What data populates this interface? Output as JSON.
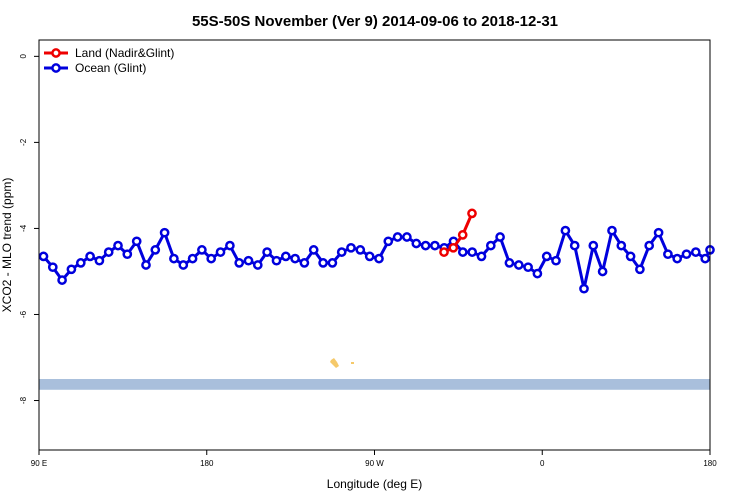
{
  "chart_data": {
    "type": "line",
    "title": "55S-50S November (Ver 9)   2014-09-06 to 2018-12-31",
    "xlabel": "Longitude (deg E)",
    "ylabel": "XCO2 - MLO trend (ppm)",
    "xlim": [
      90,
      450
    ],
    "ylim": [
      -9.15,
      0.38
    ],
    "x_ticks": [
      {
        "value": 90,
        "label": "90 E"
      },
      {
        "value": 180,
        "label": "180"
      },
      {
        "value": 270,
        "label": "90 W"
      },
      {
        "value": 360,
        "label": "0"
      },
      {
        "value": 450,
        "label": "180"
      }
    ],
    "y_ticks": [
      {
        "value": 0,
        "label": "0"
      },
      {
        "value": -2,
        "label": "-2"
      },
      {
        "value": -4,
        "label": "-4"
      },
      {
        "value": -6,
        "label": "-6"
      },
      {
        "value": -8,
        "label": "-8"
      }
    ],
    "grid": false,
    "legend_position": "top-left",
    "series": [
      {
        "name": "Land (Nadir&Glint)",
        "color": "#ee0000",
        "x": [
          307.3,
          312.3,
          317.3,
          322.3
        ],
        "y": [
          -4.55,
          -4.45,
          -4.15,
          -3.65
        ]
      },
      {
        "name": "Ocean (Glint)",
        "color": "#0000dd",
        "x": [
          92.4,
          97.4,
          102.4,
          107.4,
          112.4,
          117.4,
          122.4,
          127.4,
          132.4,
          137.4,
          142.4,
          147.4,
          152.4,
          157.4,
          162.4,
          167.4,
          172.4,
          177.4,
          182.4,
          187.4,
          192.4,
          197.4,
          202.4,
          207.4,
          212.4,
          217.4,
          222.4,
          227.4,
          232.4,
          237.4,
          242.4,
          247.4,
          252.4,
          257.4,
          262.4,
          267.4,
          272.4,
          277.4,
          282.4,
          287.4,
          292.4,
          297.4,
          302.4,
          307.4,
          312.4,
          317.4,
          322.4,
          327.4,
          332.4,
          337.4,
          342.4,
          347.4,
          352.4,
          357.4,
          362.4,
          367.4,
          372.4,
          377.4,
          382.4,
          387.4,
          392.4,
          397.4,
          402.4,
          407.4,
          412.4,
          417.4,
          422.4,
          427.4,
          432.4,
          437.4,
          442.4,
          447.4,
          450.0
        ],
        "y": [
          -4.65,
          -4.9,
          -5.2,
          -4.95,
          -4.8,
          -4.65,
          -4.75,
          -4.55,
          -4.4,
          -4.6,
          -4.3,
          -4.85,
          -4.5,
          -4.1,
          -4.7,
          -4.85,
          -4.7,
          -4.5,
          -4.7,
          -4.55,
          -4.4,
          -4.8,
          -4.75,
          -4.85,
          -4.55,
          -4.75,
          -4.65,
          -4.7,
          -4.8,
          -4.5,
          -4.8,
          -4.8,
          -4.55,
          -4.45,
          -4.5,
          -4.65,
          -4.7,
          -4.3,
          -4.2,
          -4.2,
          -4.35,
          -4.4,
          -4.4,
          -4.45,
          -4.3,
          -4.55,
          -4.55,
          -4.65,
          -4.4,
          -4.2,
          -4.8,
          -4.85,
          -4.9,
          -5.05,
          -4.65,
          -4.75,
          -4.05,
          -4.4,
          -5.4,
          -4.4,
          -5.0,
          -4.05,
          -4.4,
          -4.65,
          -4.95,
          -4.4,
          -4.1,
          -4.6,
          -4.7,
          -4.6,
          -4.55,
          -4.7,
          -4.5
        ]
      }
    ],
    "land_mask_band": {
      "y_range": [
        -7.75,
        -7.5
      ],
      "color": "#a9bfdc",
      "land_patch_color": "#f5c96a"
    }
  }
}
